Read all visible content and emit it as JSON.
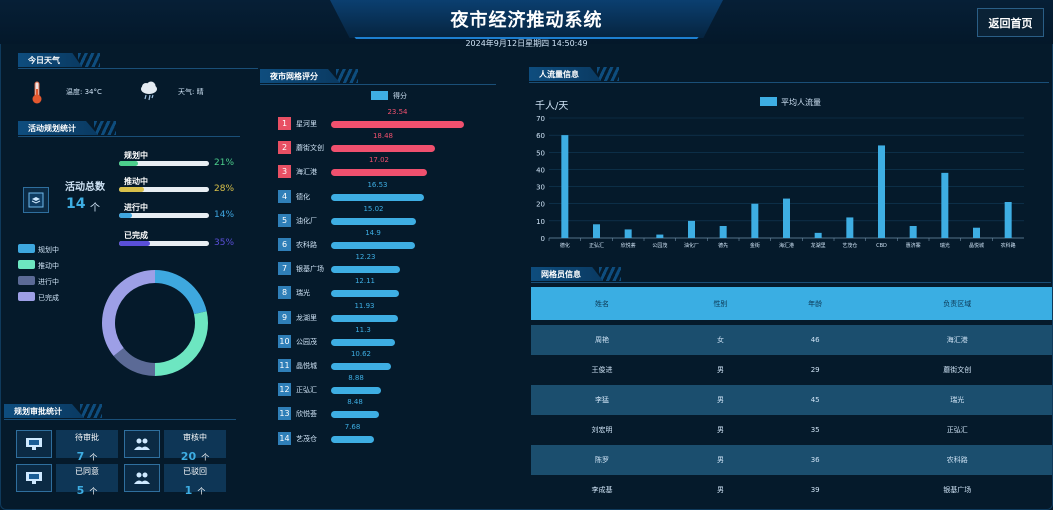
{
  "header": {
    "title": "夜市经济推动系统",
    "datetime": "2024年9月12日星期四 14:50:49",
    "back_label": "返回首页"
  },
  "weather": {
    "section_title": "今日天气",
    "temp_label": "温度: 34°C",
    "weather_label": "天气: 晴"
  },
  "activity": {
    "section_title": "活动规划统计",
    "total_label": "活动总数",
    "total_value": "14",
    "total_unit": "个",
    "statuses": [
      {
        "name": "规划中",
        "pct": "21%",
        "value": 0.21,
        "color": "#4ccf8c"
      },
      {
        "name": "推动中",
        "pct": "28%",
        "value": 0.28,
        "color": "#d8c04a"
      },
      {
        "name": "进行中",
        "pct": "14%",
        "value": 0.14,
        "color": "#3fa6e0"
      },
      {
        "name": "已完成",
        "pct": "35%",
        "value": 0.35,
        "color": "#5a4fd8"
      }
    ],
    "legend": [
      {
        "name": "规划中",
        "color": "#3ea8df"
      },
      {
        "name": "推动中",
        "color": "#6de6c1"
      },
      {
        "name": "进行中",
        "color": "#5b6a96"
      },
      {
        "name": "已完成",
        "color": "#9d9fe6"
      }
    ]
  },
  "approval": {
    "section_title": "规划审批统计",
    "items": [
      {
        "label": "待审批",
        "value": "7",
        "unit": "个"
      },
      {
        "label": "审核中",
        "value": "20",
        "unit": "个"
      },
      {
        "label": "已同意",
        "value": "5",
        "unit": "个"
      },
      {
        "label": "已驳回",
        "value": "1",
        "unit": "个"
      }
    ]
  },
  "ranking": {
    "section_title": "夜市网格评分",
    "legend": "得分"
  },
  "flow": {
    "section_title": "人流量信息",
    "unit_label": "千人/天",
    "legend": "平均人流量"
  },
  "staff": {
    "section_title": "网格员信息",
    "columns": [
      "姓名",
      "性别",
      "年龄",
      "负责区域"
    ],
    "rows": [
      [
        "周艳",
        "女",
        "46",
        "海汇港"
      ],
      [
        "王俊进",
        "男",
        "29",
        "蘑街文创"
      ],
      [
        "李猛",
        "男",
        "45",
        "瑞光"
      ],
      [
        "刘宏明",
        "男",
        "35",
        "正弘汇"
      ],
      [
        "陈罗",
        "男",
        "36",
        "农科路"
      ],
      [
        "李成基",
        "男",
        "39",
        "银基广场"
      ]
    ]
  },
  "colors": {
    "accent": "#3eaee3",
    "red": "#f0506e",
    "bg": "#051a2b"
  },
  "chart_data": [
    {
      "type": "bar",
      "title": "夜市网格评分",
      "legend": "得分",
      "categories": [
        "星河里",
        "蘑街文创",
        "海汇港",
        "德化",
        "油化厂",
        "农科路",
        "银基广场",
        "瑞光",
        "龙湖里",
        "公园茂",
        "晶悦城",
        "正弘汇",
        "欣悦荟",
        "艺茂仓"
      ],
      "values": [
        23.54,
        18.48,
        17.02,
        16.53,
        15.02,
        14.9,
        12.23,
        12.11,
        11.93,
        11.3,
        10.62,
        8.88,
        8.48,
        7.68
      ],
      "xlim": [
        0,
        25
      ]
    },
    {
      "type": "bar",
      "title": "人流量信息",
      "ylabel": "千人/天",
      "legend": "平均人流量",
      "categories": [
        "德化",
        "正弘汇",
        "欣悦荟",
        "公园茂",
        "油化厂",
        "德先",
        "金街",
        "海汇港",
        "龙湖里",
        "艺茂仓",
        "CBD",
        "惠济寨",
        "瑞光",
        "晶悦城",
        "农科路"
      ],
      "values": [
        60,
        8,
        5,
        2,
        10,
        7,
        20,
        23,
        3,
        12,
        54,
        7,
        38,
        6,
        21
      ],
      "ylim": [
        0,
        70
      ],
      "yticks": [
        0,
        10,
        20,
        30,
        40,
        50,
        60,
        70
      ]
    }
  ]
}
